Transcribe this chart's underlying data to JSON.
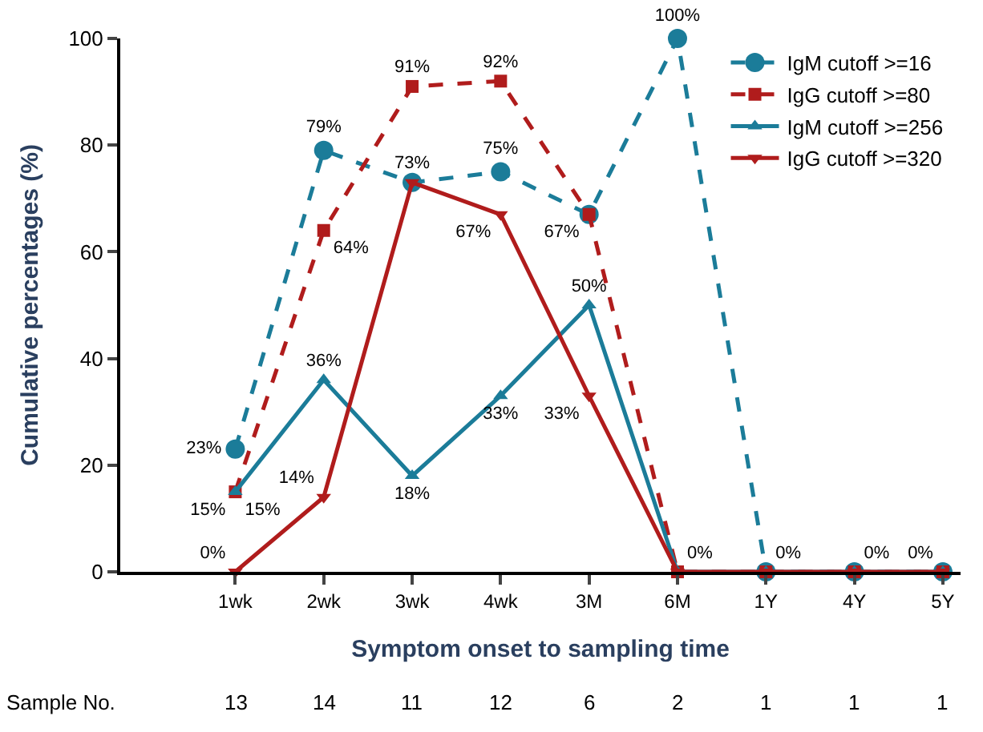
{
  "chart_data": {
    "type": "line",
    "xlabel": "Symptom onset to sampling time",
    "ylabel": "Cumulative percentages (%)",
    "categories": [
      "1wk",
      "2wk",
      "3wk",
      "4wk",
      "3M",
      "6M",
      "1Y",
      "4Y",
      "5Y"
    ],
    "series": [
      {
        "name": "IgM cutoff >=16",
        "color": "#1b7c99",
        "line_style": "dashed",
        "marker": "circle",
        "values": [
          23,
          79,
          73,
          75,
          67,
          100,
          0,
          0,
          0
        ],
        "value_labels": [
          "23%",
          "79%",
          null,
          "75%",
          null,
          "100%",
          null,
          null,
          null
        ]
      },
      {
        "name": "IgG cutoff >=80",
        "color": "#b01c1c",
        "line_style": "dashed",
        "marker": "square",
        "values": [
          15,
          64,
          91,
          92,
          67,
          0,
          0,
          0,
          0
        ],
        "value_labels": [
          "15%",
          "64%",
          "91%",
          "92%",
          "67%",
          null,
          null,
          null,
          null
        ]
      },
      {
        "name": "IgM cutoff >=256",
        "color": "#1b7c99",
        "line_style": "solid",
        "marker": "triangle",
        "values": [
          15,
          36,
          18,
          33,
          50,
          0,
          0,
          0,
          0
        ],
        "value_labels": [
          "15%",
          "36%",
          "18%",
          "33%",
          "50%",
          null,
          null,
          null,
          null
        ]
      },
      {
        "name": "IgG cutoff >=320",
        "color": "#b01c1c",
        "line_style": "solid",
        "marker": "triangle-down",
        "values": [
          0,
          14,
          73,
          67,
          33,
          0,
          0,
          0,
          0
        ],
        "value_labels": [
          "0%",
          "14%",
          "73%",
          "67%",
          "33%",
          "0%",
          "0%",
          "0%",
          "0%"
        ]
      }
    ],
    "ylim": [
      0,
      100
    ],
    "yticks": [
      0,
      20,
      40,
      60,
      80,
      100
    ],
    "grid": false,
    "legend": "top right",
    "annotations": [
      "Sample No.",
      "13",
      "14",
      "11",
      "12",
      "6",
      "2",
      "1",
      "1",
      "1"
    ]
  }
}
